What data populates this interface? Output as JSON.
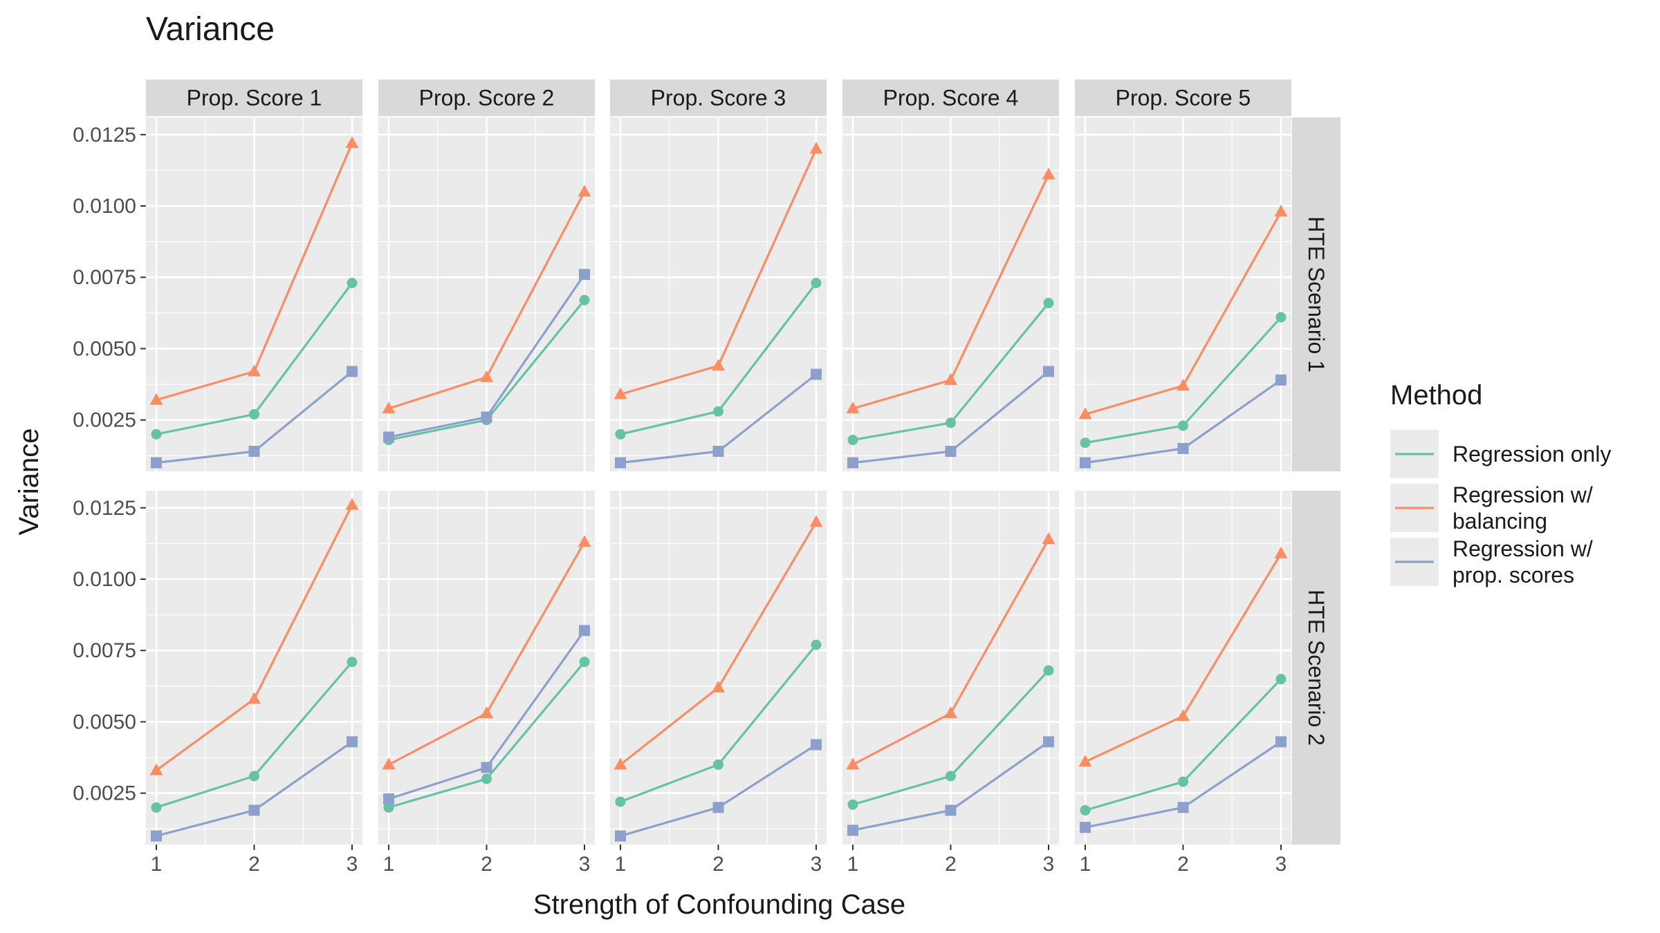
{
  "chart_data": {
    "type": "line",
    "title": "Variance",
    "xlabel": "Strength of Confounding Case",
    "ylabel": "Variance",
    "x": [
      1,
      2,
      3
    ],
    "x_ticks": [
      "1",
      "2",
      "3"
    ],
    "ylim": [
      0.0007,
      0.0131
    ],
    "y_ticks": [
      "0.0025",
      "0.0050",
      "0.0075",
      "0.0100",
      "0.0125"
    ],
    "column_facets": [
      "Prop. Score 1",
      "Prop. Score 2",
      "Prop. Score 3",
      "Prop. Score 4",
      "Prop. Score 5"
    ],
    "row_facets": [
      "HTE Scenario 1",
      "HTE Scenario 2"
    ],
    "legend": {
      "title": "Method",
      "placement": "right",
      "entries": [
        {
          "key": "regression_only",
          "label_lines": [
            "Regression only"
          ]
        },
        {
          "key": "regression_balancing",
          "label_lines": [
            "Regression w/",
            "balancing"
          ]
        },
        {
          "key": "regression_propscores",
          "label_lines": [
            "Regression w/",
            "prop. scores"
          ]
        }
      ]
    },
    "series": [
      {
        "key": "regression_only",
        "name": "Regression only",
        "color": "#66c2a5",
        "marker": "circle"
      },
      {
        "key": "regression_balancing",
        "name": "Regression w/ balancing",
        "color": "#fc8d62",
        "marker": "triangle"
      },
      {
        "key": "regression_propscores",
        "name": "Regression w/ prop. scores",
        "color": "#8da0cb",
        "marker": "square"
      }
    ],
    "panels": [
      {
        "row": "HTE Scenario 1",
        "col": "Prop. Score 1",
        "values": {
          "regression_only": [
            0.002,
            0.0027,
            0.0073
          ],
          "regression_balancing": [
            0.0032,
            0.0042,
            0.0122
          ],
          "regression_propscores": [
            0.001,
            0.0014,
            0.0042
          ]
        }
      },
      {
        "row": "HTE Scenario 1",
        "col": "Prop. Score 2",
        "values": {
          "regression_only": [
            0.0018,
            0.0025,
            0.0067
          ],
          "regression_balancing": [
            0.0029,
            0.004,
            0.0105
          ],
          "regression_propscores": [
            0.0019,
            0.0026,
            0.0076
          ]
        }
      },
      {
        "row": "HTE Scenario 1",
        "col": "Prop. Score 3",
        "values": {
          "regression_only": [
            0.002,
            0.0028,
            0.0073
          ],
          "regression_balancing": [
            0.0034,
            0.0044,
            0.012
          ],
          "regression_propscores": [
            0.001,
            0.0014,
            0.0041
          ]
        }
      },
      {
        "row": "HTE Scenario 1",
        "col": "Prop. Score 4",
        "values": {
          "regression_only": [
            0.0018,
            0.0024,
            0.0066
          ],
          "regression_balancing": [
            0.0029,
            0.0039,
            0.0111
          ],
          "regression_propscores": [
            0.001,
            0.0014,
            0.0042
          ]
        }
      },
      {
        "row": "HTE Scenario 1",
        "col": "Prop. Score 5",
        "values": {
          "regression_only": [
            0.0017,
            0.0023,
            0.0061
          ],
          "regression_balancing": [
            0.0027,
            0.0037,
            0.0098
          ],
          "regression_propscores": [
            0.001,
            0.0015,
            0.0039
          ]
        }
      },
      {
        "row": "HTE Scenario 2",
        "col": "Prop. Score 1",
        "values": {
          "regression_only": [
            0.002,
            0.0031,
            0.0071
          ],
          "regression_balancing": [
            0.0033,
            0.0058,
            0.0126
          ],
          "regression_propscores": [
            0.001,
            0.0019,
            0.0043
          ]
        }
      },
      {
        "row": "HTE Scenario 2",
        "col": "Prop. Score 2",
        "values": {
          "regression_only": [
            0.002,
            0.003,
            0.0071
          ],
          "regression_balancing": [
            0.0035,
            0.0053,
            0.0113
          ],
          "regression_propscores": [
            0.0023,
            0.0034,
            0.0082
          ]
        }
      },
      {
        "row": "HTE Scenario 2",
        "col": "Prop. Score 3",
        "values": {
          "regression_only": [
            0.0022,
            0.0035,
            0.0077
          ],
          "regression_balancing": [
            0.0035,
            0.0062,
            0.012
          ],
          "regression_propscores": [
            0.001,
            0.002,
            0.0042
          ]
        }
      },
      {
        "row": "HTE Scenario 2",
        "col": "Prop. Score 4",
        "values": {
          "regression_only": [
            0.0021,
            0.0031,
            0.0068
          ],
          "regression_balancing": [
            0.0035,
            0.0053,
            0.0114
          ],
          "regression_propscores": [
            0.0012,
            0.0019,
            0.0043
          ]
        }
      },
      {
        "row": "HTE Scenario 2",
        "col": "Prop. Score 5",
        "values": {
          "regression_only": [
            0.0019,
            0.0029,
            0.0065
          ],
          "regression_balancing": [
            0.0036,
            0.0052,
            0.0109
          ],
          "regression_propscores": [
            0.0013,
            0.002,
            0.0043
          ]
        }
      }
    ]
  }
}
